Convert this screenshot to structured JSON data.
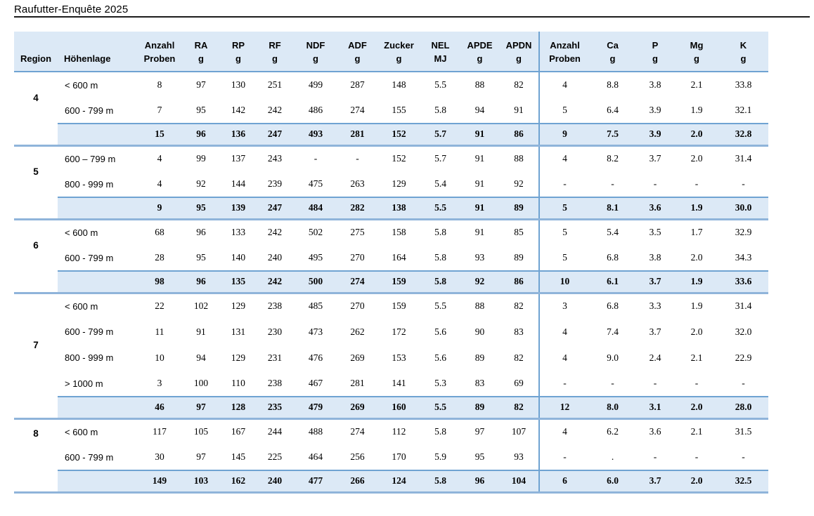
{
  "title": "Raufutter-Enquête 2025",
  "colors": {
    "header_fill": "#dce9f6",
    "total_row_fill": "#dce9f6",
    "rule_blue": "#6fa3d2",
    "separator_blue": "#8fb4da",
    "title_rule_black": "#1c1c1c",
    "text": "#000000"
  },
  "table": {
    "column_headers": [
      {
        "line1": "",
        "line2": "Region"
      },
      {
        "line1": "",
        "line2": "Höhenlage"
      },
      {
        "line1": "Anzahl",
        "line2": "Proben"
      },
      {
        "line1": "RA",
        "line2": "g"
      },
      {
        "line1": "RP",
        "line2": "g"
      },
      {
        "line1": "RF",
        "line2": "g"
      },
      {
        "line1": "NDF",
        "line2": "g"
      },
      {
        "line1": "ADF",
        "line2": "g"
      },
      {
        "line1": "Zucker",
        "line2": "g"
      },
      {
        "line1": "NEL",
        "line2": "MJ"
      },
      {
        "line1": "APDE",
        "line2": "g"
      },
      {
        "line1": "APDN",
        "line2": "g"
      },
      {
        "line1": "Anzahl",
        "line2": "Proben"
      },
      {
        "line1": "Ca",
        "line2": "g"
      },
      {
        "line1": "P",
        "line2": "g"
      },
      {
        "line1": "Mg",
        "line2": "g"
      },
      {
        "line1": "K",
        "line2": "g"
      }
    ],
    "regions": [
      {
        "region": "4",
        "rows": [
          {
            "hoehenlage": "< 600 m",
            "values": [
              "8",
              "97",
              "130",
              "251",
              "499",
              "287",
              "148",
              "5.5",
              "88",
              "82",
              "4",
              "8.8",
              "3.8",
              "2.1",
              "33.8"
            ]
          },
          {
            "hoehenlage": "600 - 799 m",
            "values": [
              "7",
              "95",
              "142",
              "242",
              "486",
              "274",
              "155",
              "5.8",
              "94",
              "91",
              "5",
              "6.4",
              "3.9",
              "1.9",
              "32.1"
            ]
          }
        ],
        "total": [
          "15",
          "96",
          "136",
          "247",
          "493",
          "281",
          "152",
          "5.7",
          "91",
          "86",
          "9",
          "7.5",
          "3.9",
          "2.0",
          "32.8"
        ]
      },
      {
        "region": "5",
        "rows": [
          {
            "hoehenlage": "600 – 799 m",
            "values": [
              "4",
              "99",
              "137",
              "243",
              "-",
              "-",
              "152",
              "5.7",
              "91",
              "88",
              "4",
              "8.2",
              "3.7",
              "2.0",
              "31.4"
            ]
          },
          {
            "hoehenlage": "800 - 999 m",
            "values": [
              "4",
              "92",
              "144",
              "239",
              "475",
              "263",
              "129",
              "5.4",
              "91",
              "92",
              "-",
              "-",
              "-",
              "-",
              "-"
            ]
          }
        ],
        "total": [
          "9",
          "95",
          "139",
          "247",
          "484",
          "282",
          "138",
          "5.5",
          "91",
          "89",
          "5",
          "8.1",
          "3.6",
          "1.9",
          "30.0"
        ]
      },
      {
        "region": "6",
        "rows": [
          {
            "hoehenlage": "< 600 m",
            "values": [
              "68",
              "96",
              "133",
              "242",
              "502",
              "275",
              "158",
              "5.8",
              "91",
              "85",
              "5",
              "5.4",
              "3.5",
              "1.7",
              "32.9"
            ]
          },
          {
            "hoehenlage": "600 - 799 m",
            "values": [
              "28",
              "95",
              "140",
              "240",
              "495",
              "270",
              "164",
              "5.8",
              "93",
              "89",
              "5",
              "6.8",
              "3.8",
              "2.0",
              "34.3"
            ]
          }
        ],
        "total": [
          "98",
          "96",
          "135",
          "242",
          "500",
          "274",
          "159",
          "5.8",
          "92",
          "86",
          "10",
          "6.1",
          "3.7",
          "1.9",
          "33.6"
        ]
      },
      {
        "region": "7",
        "rows": [
          {
            "hoehenlage": "< 600 m",
            "values": [
              "22",
              "102",
              "129",
              "238",
              "485",
              "270",
              "159",
              "5.5",
              "88",
              "82",
              "3",
              "6.8",
              "3.3",
              "1.9",
              "31.4"
            ]
          },
          {
            "hoehenlage": "600 - 799 m",
            "values": [
              "11",
              "91",
              "131",
              "230",
              "473",
              "262",
              "172",
              "5.6",
              "90",
              "83",
              "4",
              "7.4",
              "3.7",
              "2.0",
              "32.0"
            ]
          },
          {
            "hoehenlage": "800 - 999 m",
            "values": [
              "10",
              "94",
              "129",
              "231",
              "476",
              "269",
              "153",
              "5.6",
              "89",
              "82",
              "4",
              "9.0",
              "2.4",
              "2.1",
              "22.9"
            ]
          },
          {
            "hoehenlage": "> 1000 m",
            "values": [
              "3",
              "100",
              "110",
              "238",
              "467",
              "281",
              "141",
              "5.3",
              "83",
              "69",
              "-",
              "-",
              "-",
              "-",
              "-"
            ]
          }
        ],
        "total": [
          "46",
          "97",
          "128",
          "235",
          "479",
          "269",
          "160",
          "5.5",
          "89",
          "82",
          "12",
          "8.0",
          "3.1",
          "2.0",
          "28.0"
        ]
      },
      {
        "region": "8",
        "rows": [
          {
            "hoehenlage": "< 600 m",
            "values": [
              "117",
              "105",
              "167",
              "244",
              "488",
              "274",
              "112",
              "5.8",
              "97",
              "107",
              "4",
              "6.2",
              "3.6",
              "2.1",
              "31.5"
            ]
          },
          {
            "hoehenlage": "600 - 799 m",
            "values": [
              "30",
              "97",
              "145",
              "225",
              "464",
              "256",
              "170",
              "5.9",
              "95",
              "93",
              "-",
              ".",
              "-",
              "-",
              "-"
            ]
          }
        ],
        "total": [
          "149",
          "103",
          "162",
          "240",
          "477",
          "266",
          "124",
          "5.8",
          "96",
          "104",
          "6",
          "6.0",
          "3.7",
          "2.0",
          "32.5"
        ]
      }
    ]
  }
}
